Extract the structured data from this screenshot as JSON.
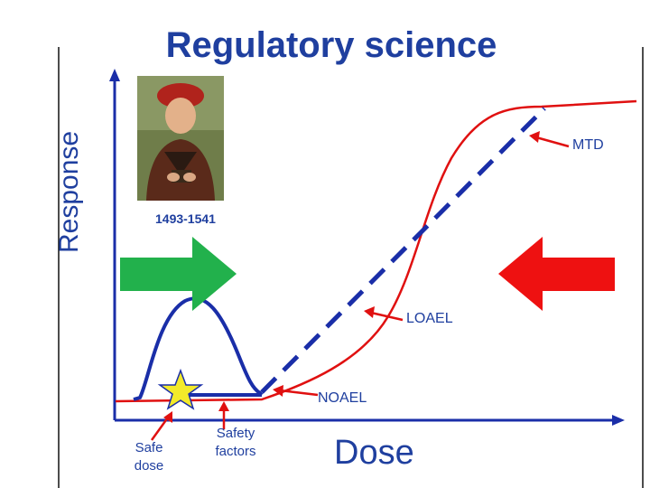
{
  "title": "Regulatory science",
  "y_axis_label": "Response",
  "x_axis_label": "Dose",
  "portrait_caption": "1493-1541",
  "labels": {
    "mtd": "MTD",
    "loael": "LOAEL",
    "noael": "NOAEL",
    "safe_dose": "Safe dose",
    "safety_factors": "Safety factors"
  },
  "colors": {
    "text": "#1f3f9f",
    "blue_curve": "#1a2ea8",
    "red_curve": "#e01010",
    "green_arrow": "#22b14c",
    "red_arrow": "#ee1111",
    "star": "#f3ea2a"
  }
}
